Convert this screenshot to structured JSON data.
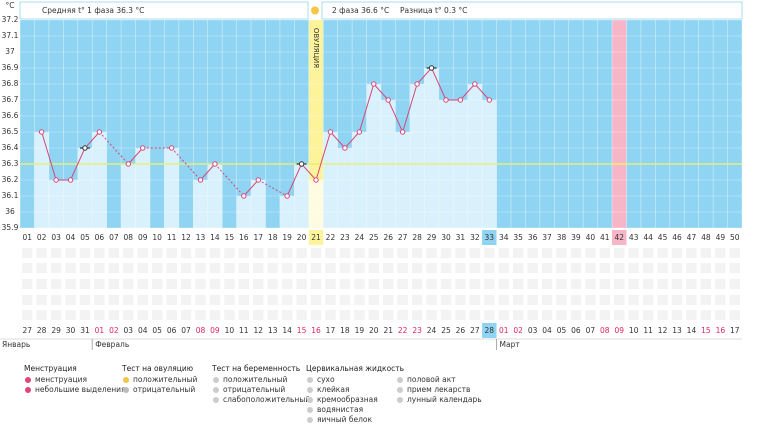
{
  "chart_data": {
    "type": "line",
    "y_label": "°C",
    "header": {
      "phase1": "Средняя t° 1 фаза 36.3 °C",
      "phase2": "2 фаза 36.6 °C",
      "difference": "Разница t° 0.3 °C"
    },
    "ovulation_label": "ОВУЛЯЦИЯ",
    "ovulation_category": "21",
    "ovulation_color": "#fdf39a",
    "highlight_category": "42",
    "highlight_color": "#f7b6c8",
    "current_category": "33",
    "background_color": "#8fd4f2",
    "bar_color": "#d9f1fc",
    "line_color": "#d8457a",
    "coverline": 36.3,
    "coverline_color": "#e6f07a",
    "categories": [
      "01",
      "02",
      "03",
      "04",
      "05",
      "06",
      "07",
      "08",
      "09",
      "10",
      "11",
      "12",
      "13",
      "14",
      "15",
      "16",
      "17",
      "18",
      "19",
      "20",
      "21",
      "22",
      "23",
      "24",
      "25",
      "26",
      "27",
      "28",
      "29",
      "30",
      "31",
      "32",
      "33",
      "34",
      "35",
      "36",
      "37",
      "38",
      "39",
      "40",
      "41",
      "42",
      "43",
      "44",
      "45",
      "46",
      "47",
      "48",
      "49",
      "50"
    ],
    "series": [
      {
        "name": "t°",
        "color": "#d8457a",
        "values": [
          null,
          36.5,
          36.2,
          36.2,
          36.4,
          36.5,
          null,
          36.3,
          36.4,
          null,
          36.4,
          null,
          36.2,
          36.3,
          null,
          36.1,
          36.2,
          null,
          36.1,
          36.3,
          36.2,
          36.5,
          36.4,
          36.5,
          36.8,
          36.7,
          36.5,
          36.8,
          36.9,
          36.7,
          36.7,
          36.8,
          36.7,
          null,
          null,
          null,
          null,
          null,
          null,
          null,
          null,
          null,
          null,
          null,
          null,
          null,
          null,
          null,
          null,
          null
        ],
        "marker_colors": [
          null,
          "#d8457a",
          "#d8457a",
          "#d8457a",
          "#333333",
          "#d8457a",
          null,
          "#d8457a",
          "#d8457a",
          null,
          "#d8457a",
          null,
          "#d8457a",
          "#d8457a",
          null,
          "#d8457a",
          "#d8457a",
          null,
          "#d8457a",
          "#333333",
          "#d8457a",
          "#d8457a",
          "#d8457a",
          "#d8457a",
          "#d8457a",
          "#d8457a",
          "#d8457a",
          "#d8457a",
          "#333333",
          "#d8457a",
          "#d8457a",
          "#d8457a",
          "#d8457a",
          null,
          null,
          null,
          null,
          null,
          null,
          null,
          null,
          null,
          null,
          null,
          null,
          null,
          null,
          null,
          null,
          null
        ]
      }
    ],
    "ylim": [
      35.9,
      37.2
    ],
    "yticks": [
      35.9,
      36,
      36.1,
      36.2,
      36.3,
      36.4,
      36.5,
      36.6,
      36.7,
      36.8,
      36.9,
      37,
      37.1,
      37.2
    ],
    "dates": [
      "27",
      "28",
      "29",
      "30",
      "31",
      "01",
      "02",
      "03",
      "04",
      "05",
      "06",
      "07",
      "08",
      "09",
      "10",
      "11",
      "12",
      "13",
      "14",
      "15",
      "16",
      "17",
      "18",
      "19",
      "20",
      "21",
      "22",
      "23",
      "24",
      "25",
      "26",
      "27",
      "28",
      "01",
      "02",
      "03",
      "04",
      "05",
      "06",
      "07",
      "08",
      "09",
      "10",
      "11",
      "12",
      "13",
      "14",
      "15",
      "16",
      "17"
    ],
    "date_colors": [
      "#333",
      "#333",
      "#333",
      "#333",
      "#333",
      "#e0245e",
      "#e0245e",
      "#333",
      "#333",
      "#333",
      "#333",
      "#333",
      "#e0245e",
      "#e0245e",
      "#333",
      "#333",
      "#333",
      "#333",
      "#333",
      "#e0245e",
      "#e0245e",
      "#333",
      "#333",
      "#333",
      "#333",
      "#333",
      "#e0245e",
      "#e0245e",
      "#333",
      "#333",
      "#333",
      "#333",
      "#333",
      "#e0245e",
      "#e0245e",
      "#333",
      "#333",
      "#333",
      "#333",
      "#333",
      "#e0245e",
      "#e0245e",
      "#333",
      "#333",
      "#333",
      "#333",
      "#333",
      "#e0245e",
      "#e0245e",
      "#333"
    ],
    "months": [
      "Январь",
      "Февраль",
      "Март"
    ],
    "legend": [
      {
        "title": "Менструация",
        "items": [
          "менструация",
          "небольшие выделения"
        ]
      },
      {
        "title": "Тест на овуляцию",
        "items": [
          "положительный",
          "отрицательный"
        ]
      },
      {
        "title": "Тест на беременность",
        "items": [
          "положительный",
          "отрицательный",
          "слабоположительный"
        ]
      },
      {
        "title": "Цервикальная жидкость",
        "items": [
          "сухо",
          "клейкая",
          "кремообразная",
          "водянистая",
          "яичный белок"
        ]
      },
      {
        "items": [
          "половой акт",
          "прием лекарств",
          "лунный календарь"
        ]
      }
    ]
  }
}
